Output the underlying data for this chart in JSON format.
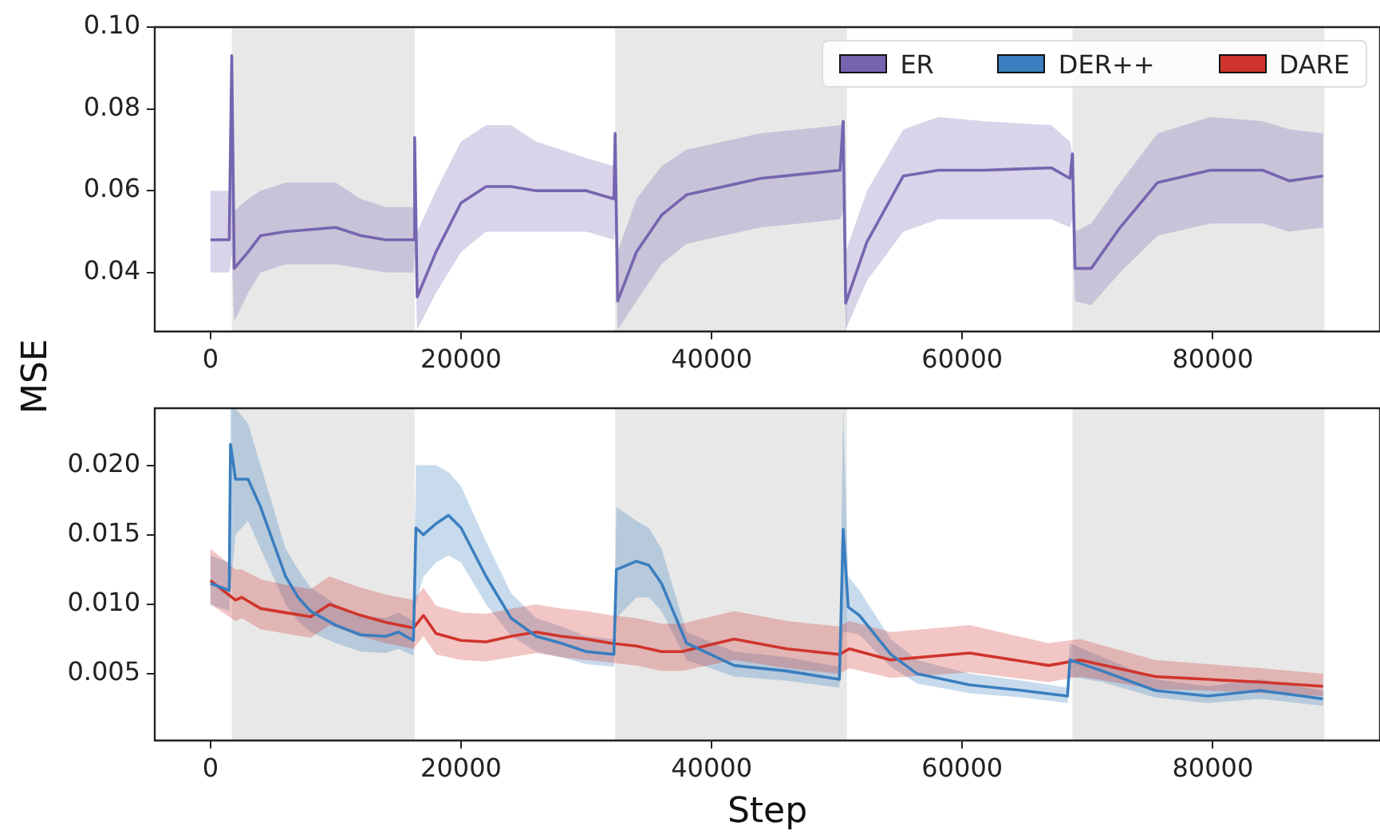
{
  "chart_data": [
    {
      "type": "line",
      "ylabel": "MSE",
      "xlim": [
        -4445,
        93345
      ],
      "xticks": [
        0,
        20000,
        40000,
        60000,
        80000
      ],
      "ylim": [
        0.0256,
        0.1
      ],
      "yticks": [
        0.04,
        0.06,
        0.08,
        {
          "value": 0.1,
          "label": "0.10"
        }
      ],
      "grid": false,
      "legend": "top right",
      "marker": "none",
      "line_style": "solid",
      "bands": [
        {
          "axis": "x",
          "from": 1700,
          "to": 16300,
          "color": "#e8e8e8"
        },
        {
          "axis": "x",
          "from": 32300,
          "to": 50800,
          "color": "#e8e8e8"
        },
        {
          "axis": "x",
          "from": 68800,
          "to": 88900,
          "color": "#e8e8e8"
        }
      ],
      "series": [
        {
          "name": "ER",
          "color": "#7565b0",
          "x": [
            0,
            1500,
            1700,
            1900,
            3000,
            4000,
            6000,
            10000,
            12000,
            14000,
            16200,
            16300,
            16500,
            18000,
            20000,
            22000,
            24000,
            26000,
            28000,
            30000,
            32200,
            32300,
            32500,
            34000,
            36000,
            38000,
            43900,
            50250,
            50500,
            50700,
            52400,
            55300,
            58100,
            61700,
            67100,
            68600,
            68800,
            69000,
            70300,
            72600,
            75600,
            79800,
            84000,
            86100,
            88800
          ],
          "values": [
            0.048,
            0.048,
            0.093,
            0.041,
            0.045,
            0.049,
            0.05,
            0.051,
            0.049,
            0.048,
            0.048,
            0.073,
            0.034,
            0.045,
            0.057,
            0.061,
            0.061,
            0.06,
            0.06,
            0.06,
            0.058,
            0.074,
            0.033,
            0.045,
            0.054,
            0.059,
            0.063,
            0.065,
            0.077,
            0.0325,
            0.0475,
            0.0636,
            0.065,
            0.065,
            0.0656,
            0.063,
            0.069,
            0.041,
            0.041,
            0.051,
            0.062,
            0.065,
            0.065,
            0.0624,
            0.0636
          ],
          "lower": [
            0.04,
            0.04,
            0.045,
            0.028,
            0.035,
            0.04,
            0.042,
            0.042,
            0.041,
            0.04,
            0.04,
            0.045,
            0.026,
            0.035,
            0.045,
            0.05,
            0.05,
            0.05,
            0.05,
            0.05,
            0.048,
            0.05,
            0.026,
            0.033,
            0.042,
            0.047,
            0.051,
            0.053,
            0.055,
            0.026,
            0.038,
            0.05,
            0.053,
            0.053,
            0.053,
            0.051,
            0.053,
            0.033,
            0.032,
            0.04,
            0.049,
            0.052,
            0.052,
            0.05,
            0.051
          ],
          "upper": [
            0.06,
            0.06,
            0.093,
            0.055,
            0.058,
            0.06,
            0.062,
            0.062,
            0.058,
            0.056,
            0.056,
            0.073,
            0.05,
            0.06,
            0.072,
            0.076,
            0.076,
            0.072,
            0.07,
            0.068,
            0.066,
            0.074,
            0.045,
            0.058,
            0.066,
            0.07,
            0.074,
            0.076,
            0.077,
            0.045,
            0.06,
            0.075,
            0.078,
            0.077,
            0.076,
            0.072,
            0.069,
            0.05,
            0.052,
            0.062,
            0.074,
            0.078,
            0.077,
            0.075,
            0.074
          ]
        }
      ]
    },
    {
      "type": "line",
      "xlabel": "Step",
      "legend": "top right",
      "xlim": [
        -4445,
        93345
      ],
      "xticks": [
        0,
        20000,
        40000,
        60000,
        80000
      ],
      "ylim": [
        0.0002,
        0.0241
      ],
      "yticks": [
        0.005,
        {
          "value": 0.01,
          "label": "0.010"
        },
        0.015,
        {
          "value": 0.02,
          "label": "0.020"
        }
      ],
      "grid": false,
      "marker": "none",
      "line_style": "solid",
      "bands": [
        {
          "axis": "x",
          "from": 1700,
          "to": 16300,
          "color": "#e8e8e8"
        },
        {
          "axis": "x",
          "from": 32300,
          "to": 50800,
          "color": "#e8e8e8"
        },
        {
          "axis": "x",
          "from": 68800,
          "to": 88900,
          "color": "#e8e8e8"
        }
      ],
      "series": [
        {
          "name": "DER++",
          "color": "#3a7ebf",
          "x": [
            0,
            1500,
            1600,
            2000,
            3000,
            4000,
            5000,
            6000,
            7000,
            8000,
            10000,
            12000,
            14000,
            15000,
            16200,
            16400,
            17000,
            18000,
            19000,
            20000,
            22000,
            24000,
            26000,
            28000,
            30000,
            32200,
            32400,
            34000,
            35000,
            36000,
            38000,
            41800,
            46000,
            50200,
            50500,
            50900,
            51800,
            54300,
            56400,
            60600,
            64800,
            68400,
            68600,
            71200,
            75400,
            79600,
            83800,
            88800
          ],
          "values": [
            0.0115,
            0.011,
            0.0215,
            0.019,
            0.019,
            0.017,
            0.0145,
            0.012,
            0.0105,
            0.0095,
            0.0085,
            0.0078,
            0.0077,
            0.008,
            0.0074,
            0.0155,
            0.015,
            0.0158,
            0.0164,
            0.0155,
            0.012,
            0.009,
            0.0077,
            0.0072,
            0.0066,
            0.0064,
            0.0125,
            0.0131,
            0.0128,
            0.0115,
            0.0072,
            0.0056,
            0.0052,
            0.0046,
            0.0154,
            0.0098,
            0.0092,
            0.0064,
            0.005,
            0.0042,
            0.0038,
            0.0034,
            0.006,
            0.0052,
            0.0038,
            0.0034,
            0.0038,
            0.0032
          ],
          "lower": [
            0.01,
            0.0095,
            0.011,
            0.015,
            0.016,
            0.014,
            0.012,
            0.01,
            0.0088,
            0.008,
            0.0072,
            0.0066,
            0.0065,
            0.0068,
            0.0063,
            0.01,
            0.012,
            0.013,
            0.0135,
            0.013,
            0.01,
            0.0077,
            0.0066,
            0.0062,
            0.0057,
            0.0055,
            0.009,
            0.0105,
            0.0105,
            0.0095,
            0.006,
            0.0048,
            0.0045,
            0.004,
            0.008,
            0.008,
            0.0078,
            0.0055,
            0.0043,
            0.0036,
            0.0033,
            0.0029,
            0.0048,
            0.0044,
            0.0033,
            0.0029,
            0.0032,
            0.0027
          ],
          "upper": [
            0.0135,
            0.013,
            0.0241,
            0.0241,
            0.023,
            0.02,
            0.017,
            0.014,
            0.0125,
            0.0112,
            0.01,
            0.0092,
            0.009,
            0.0094,
            0.0088,
            0.02,
            0.02,
            0.02,
            0.0195,
            0.0185,
            0.0145,
            0.0108,
            0.009,
            0.0084,
            0.0077,
            0.0075,
            0.017,
            0.016,
            0.0155,
            0.014,
            0.008,
            0.0066,
            0.0062,
            0.0055,
            0.0241,
            0.012,
            0.011,
            0.0075,
            0.006,
            0.005,
            0.0045,
            0.004,
            0.0072,
            0.0062,
            0.0046,
            0.0041,
            0.0046,
            0.0038
          ]
        },
        {
          "name": "DARE",
          "color": "#d0342c",
          "x": [
            0,
            2000,
            2500,
            4000,
            6000,
            8000,
            9500,
            12000,
            14000,
            16200,
            17000,
            18000,
            20000,
            22000,
            24000,
            26000,
            28000,
            30000,
            32000,
            34000,
            36000,
            37600,
            41800,
            46000,
            50200,
            51000,
            54300,
            60600,
            66900,
            69400,
            75400,
            79600,
            83800,
            88800
          ],
          "values": [
            0.0117,
            0.0103,
            0.0105,
            0.0097,
            0.0094,
            0.0091,
            0.01,
            0.0092,
            0.0087,
            0.0083,
            0.0092,
            0.0079,
            0.0074,
            0.0073,
            0.0077,
            0.008,
            0.0077,
            0.0075,
            0.0072,
            0.007,
            0.0066,
            0.0066,
            0.0075,
            0.0068,
            0.0064,
            0.0068,
            0.006,
            0.0065,
            0.0056,
            0.006,
            0.0048,
            0.0046,
            0.0044,
            0.0041
          ],
          "lower": [
            0.01,
            0.0088,
            0.009,
            0.0082,
            0.0079,
            0.0076,
            0.0085,
            0.0077,
            0.0072,
            0.0068,
            0.0077,
            0.0064,
            0.006,
            0.0059,
            0.0062,
            0.0065,
            0.0062,
            0.006,
            0.0058,
            0.0056,
            0.0052,
            0.0052,
            0.006,
            0.0054,
            0.005,
            0.0054,
            0.0047,
            0.0051,
            0.0044,
            0.0048,
            0.0039,
            0.0038,
            0.0036,
            0.0034
          ],
          "upper": [
            0.014,
            0.0125,
            0.0125,
            0.0118,
            0.0114,
            0.0111,
            0.012,
            0.0112,
            0.0107,
            0.0103,
            0.0112,
            0.0099,
            0.0094,
            0.0093,
            0.0097,
            0.01,
            0.0097,
            0.0095,
            0.0092,
            0.009,
            0.0086,
            0.0086,
            0.0095,
            0.0088,
            0.0084,
            0.0088,
            0.008,
            0.0085,
            0.0072,
            0.0075,
            0.006,
            0.0057,
            0.0054,
            0.005
          ]
        }
      ]
    }
  ]
}
